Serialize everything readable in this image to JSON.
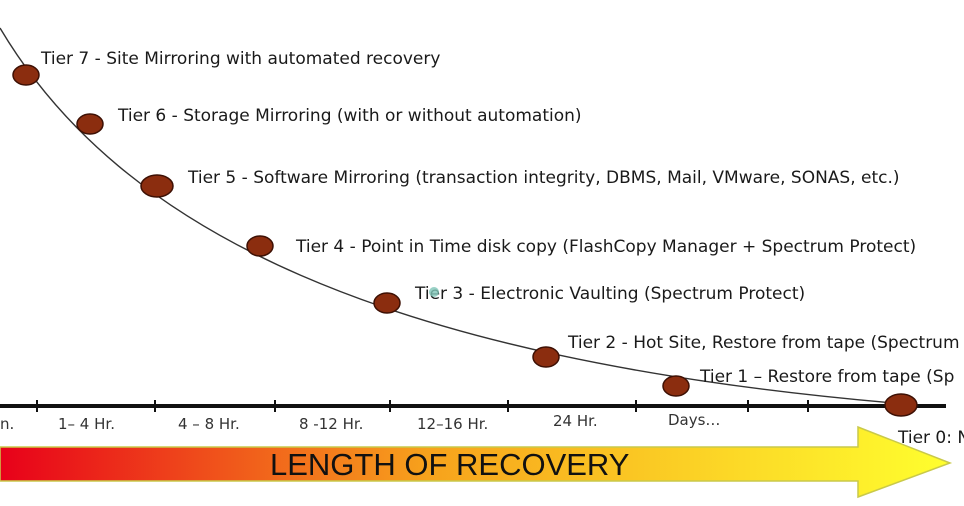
{
  "tiers": [
    {
      "label": "Tier 7 - Site Mirroring with automated recovery"
    },
    {
      "label": "Tier 6 - Storage Mirroring (with or without automation)"
    },
    {
      "label": "Tier 5 - Software Mirroring (transaction integrity, DBMS, Mail, VMware, SONAS, etc.)"
    },
    {
      "label": "Tier 4 - Point in Time disk copy (FlashCopy Manager + Spectrum Protect)"
    },
    {
      "label": "Tier 3 - Electronic Vaulting (Spectrum Protect)"
    },
    {
      "label": "Tier 2 - Hot Site, Restore from tape (Spectrum"
    },
    {
      "label": "Tier 1 – Restore from tape (Sp"
    },
    {
      "label": "Tier 0: N"
    }
  ],
  "axis": {
    "ticks": [
      "n.",
      "1– 4 Hr.",
      "4 – 8 Hr.",
      "8 -12 Hr.",
      "12–16 Hr.",
      "24 Hr.",
      "Days…"
    ]
  },
  "arrow": {
    "label": "LENGTH OF RECOVERY",
    "gradient_start": "#e8001a",
    "gradient_mid": "#f7a21c",
    "gradient_end": "#ffff2e",
    "border_color": "#c9c94a"
  },
  "colors": {
    "node_fill": "#8b2d0f",
    "node_stroke": "#3d1004",
    "curve": "#333333",
    "axis": "#111111"
  }
}
